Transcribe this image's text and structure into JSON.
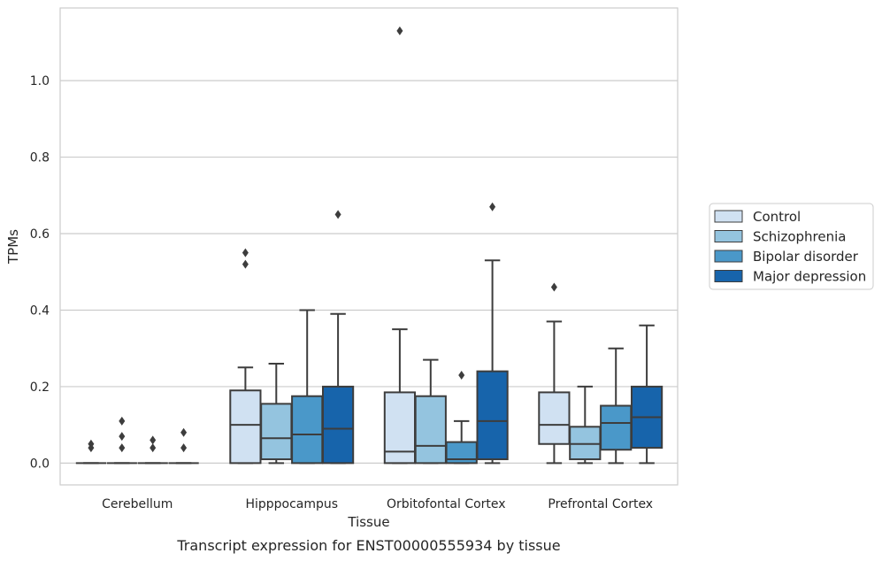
{
  "caption": "Transcript expression for ENST00000555934 by tissue",
  "colors": {
    "Control": "#d0e1f2",
    "Schizophrenia": "#94c4df",
    "Bipolar disorder": "#4a98c9",
    "Major depression": "#1764ab",
    "line": "#3d3d3d",
    "grid": "#cccccc"
  },
  "chart_data": {
    "type": "box",
    "xlabel": "Tissue",
    "ylabel": "TPMs",
    "yticks": [
      0.0,
      0.2,
      0.4,
      0.6,
      0.8,
      1.0
    ],
    "ylim": [
      -0.057,
      1.19
    ],
    "grid": "horizontal",
    "legend_position": "right",
    "categories": [
      "Cerebellum",
      "Hipppocampus",
      "Orbitofontal Cortex",
      "Prefrontal Cortex"
    ],
    "series": [
      {
        "name": "Control",
        "boxes": [
          {
            "whisker_low": 0,
            "q1": 0,
            "median": 0,
            "q3": 0,
            "whisker_high": 0,
            "outliers": [
              0.04,
              0.05
            ]
          },
          {
            "whisker_low": 0,
            "q1": 0,
            "median": 0.1,
            "q3": 0.19,
            "whisker_high": 0.25,
            "outliers": [
              0.52,
              0.55
            ]
          },
          {
            "whisker_low": 0,
            "q1": 0,
            "median": 0.03,
            "q3": 0.185,
            "whisker_high": 0.35,
            "outliers": [
              1.13
            ]
          },
          {
            "whisker_low": 0,
            "q1": 0.05,
            "median": 0.1,
            "q3": 0.185,
            "whisker_high": 0.37,
            "outliers": [
              0.46
            ]
          }
        ]
      },
      {
        "name": "Schizophrenia",
        "boxes": [
          {
            "whisker_low": 0,
            "q1": 0,
            "median": 0,
            "q3": 0,
            "whisker_high": 0,
            "outliers": [
              0.04,
              0.07,
              0.11
            ]
          },
          {
            "whisker_low": 0,
            "q1": 0.01,
            "median": 0.065,
            "q3": 0.155,
            "whisker_high": 0.26,
            "outliers": []
          },
          {
            "whisker_low": 0,
            "q1": 0,
            "median": 0.045,
            "q3": 0.175,
            "whisker_high": 0.27,
            "outliers": []
          },
          {
            "whisker_low": 0,
            "q1": 0.01,
            "median": 0.05,
            "q3": 0.095,
            "whisker_high": 0.2,
            "outliers": []
          }
        ]
      },
      {
        "name": "Bipolar disorder",
        "boxes": [
          {
            "whisker_low": 0,
            "q1": 0,
            "median": 0,
            "q3": 0,
            "whisker_high": 0,
            "outliers": [
              0.04,
              0.06
            ]
          },
          {
            "whisker_low": 0,
            "q1": 0,
            "median": 0.075,
            "q3": 0.175,
            "whisker_high": 0.4,
            "outliers": []
          },
          {
            "whisker_low": 0,
            "q1": 0,
            "median": 0.01,
            "q3": 0.055,
            "whisker_high": 0.11,
            "outliers": [
              0.23
            ]
          },
          {
            "whisker_low": 0,
            "q1": 0.035,
            "median": 0.105,
            "q3": 0.15,
            "whisker_high": 0.3,
            "outliers": []
          }
        ]
      },
      {
        "name": "Major depression",
        "boxes": [
          {
            "whisker_low": 0,
            "q1": 0,
            "median": 0,
            "q3": 0,
            "whisker_high": 0,
            "outliers": [
              0.04,
              0.08
            ]
          },
          {
            "whisker_low": 0,
            "q1": 0,
            "median": 0.09,
            "q3": 0.2,
            "whisker_high": 0.39,
            "outliers": [
              0.65
            ]
          },
          {
            "whisker_low": 0,
            "q1": 0.01,
            "median": 0.11,
            "q3": 0.24,
            "whisker_high": 0.53,
            "outliers": [
              0.67
            ]
          },
          {
            "whisker_low": 0,
            "q1": 0.04,
            "median": 0.12,
            "q3": 0.2,
            "whisker_high": 0.36,
            "outliers": []
          }
        ]
      }
    ]
  }
}
